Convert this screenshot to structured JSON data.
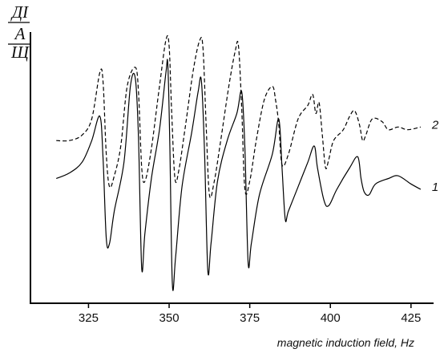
{
  "chart_data": {
    "type": "line",
    "ylabel": [
      "ДI",
      "А",
      "Щ"
    ],
    "xlabel": "magnetic induction field, Hz",
    "x_ticks": [
      325,
      350,
      375,
      400,
      425
    ],
    "xlim": [
      307,
      432
    ],
    "ylim": [
      0,
      1
    ],
    "grid": false,
    "series": [
      {
        "name": "1",
        "style": "solid",
        "color": "#000000",
        "points": [
          [
            315,
            0.46
          ],
          [
            319,
            0.48
          ],
          [
            323,
            0.52
          ],
          [
            326,
            0.6
          ],
          [
            328.5,
            0.69
          ],
          [
            329.5,
            0.54
          ],
          [
            330.5,
            0.24
          ],
          [
            331.5,
            0.22
          ],
          [
            333,
            0.34
          ],
          [
            336,
            0.52
          ],
          [
            338,
            0.8
          ],
          [
            339.5,
            0.83
          ],
          [
            340.5,
            0.61
          ],
          [
            341.5,
            0.13
          ],
          [
            342.5,
            0.26
          ],
          [
            344.5,
            0.46
          ],
          [
            347,
            0.64
          ],
          [
            349,
            0.85
          ],
          [
            349.6,
            0.88
          ],
          [
            350.2,
            0.6
          ],
          [
            351,
            0.07
          ],
          [
            352,
            0.17
          ],
          [
            354,
            0.43
          ],
          [
            357,
            0.63
          ],
          [
            359,
            0.78
          ],
          [
            360,
            0.82
          ],
          [
            361,
            0.55
          ],
          [
            362,
            0.12
          ],
          [
            363,
            0.22
          ],
          [
            365,
            0.45
          ],
          [
            368,
            0.6
          ],
          [
            371,
            0.7
          ],
          [
            372.5,
            0.78
          ],
          [
            373.5,
            0.57
          ],
          [
            374.5,
            0.15
          ],
          [
            375.5,
            0.22
          ],
          [
            378,
            0.4
          ],
          [
            382,
            0.55
          ],
          [
            384,
            0.68
          ],
          [
            385,
            0.5
          ],
          [
            386,
            0.31
          ],
          [
            387,
            0.34
          ],
          [
            390,
            0.43
          ],
          [
            393,
            0.52
          ],
          [
            395,
            0.58
          ],
          [
            396,
            0.5
          ],
          [
            398,
            0.38
          ],
          [
            399.5,
            0.36
          ],
          [
            402,
            0.42
          ],
          [
            406,
            0.5
          ],
          [
            408.5,
            0.54
          ],
          [
            409.5,
            0.46
          ],
          [
            410.5,
            0.41
          ],
          [
            412,
            0.4
          ],
          [
            414,
            0.44
          ],
          [
            418,
            0.46
          ],
          [
            421,
            0.47
          ],
          [
            425,
            0.44
          ],
          [
            428,
            0.42
          ]
        ]
      },
      {
        "name": "2",
        "style": "dashed",
        "color": "#000000",
        "points": [
          [
            315,
            0.6
          ],
          [
            319,
            0.6
          ],
          [
            323,
            0.62
          ],
          [
            326,
            0.68
          ],
          [
            328.5,
            0.85
          ],
          [
            329.5,
            0.82
          ],
          [
            330.5,
            0.55
          ],
          [
            331.5,
            0.43
          ],
          [
            333,
            0.47
          ],
          [
            335,
            0.58
          ],
          [
            337,
            0.8
          ],
          [
            339.5,
            0.87
          ],
          [
            340.5,
            0.78
          ],
          [
            341.5,
            0.5
          ],
          [
            342.5,
            0.45
          ],
          [
            344.5,
            0.57
          ],
          [
            347,
            0.8
          ],
          [
            349,
            0.97
          ],
          [
            350,
            0.95
          ],
          [
            350.8,
            0.7
          ],
          [
            351.8,
            0.46
          ],
          [
            353,
            0.49
          ],
          [
            355,
            0.65
          ],
          [
            357.5,
            0.86
          ],
          [
            359.5,
            0.97
          ],
          [
            360.5,
            0.94
          ],
          [
            361.5,
            0.65
          ],
          [
            362.5,
            0.4
          ],
          [
            364,
            0.45
          ],
          [
            366,
            0.6
          ],
          [
            368.5,
            0.8
          ],
          [
            370.5,
            0.93
          ],
          [
            371.5,
            0.95
          ],
          [
            372.5,
            0.72
          ],
          [
            373.5,
            0.42
          ],
          [
            375,
            0.45
          ],
          [
            377,
            0.6
          ],
          [
            379.5,
            0.75
          ],
          [
            382,
            0.8
          ],
          [
            383,
            0.75
          ],
          [
            384,
            0.66
          ],
          [
            385,
            0.51
          ],
          [
            387,
            0.55
          ],
          [
            390,
            0.68
          ],
          [
            393,
            0.73
          ],
          [
            394.5,
            0.77
          ],
          [
            395.5,
            0.7
          ],
          [
            396.5,
            0.74
          ],
          [
            397.5,
            0.62
          ],
          [
            398.5,
            0.5
          ],
          [
            399.5,
            0.53
          ],
          [
            401,
            0.6
          ],
          [
            404,
            0.64
          ],
          [
            406,
            0.69
          ],
          [
            407.5,
            0.71
          ],
          [
            409,
            0.66
          ],
          [
            410,
            0.6
          ],
          [
            411,
            0.62
          ],
          [
            413,
            0.68
          ],
          [
            416,
            0.67
          ],
          [
            418,
            0.64
          ],
          [
            421,
            0.65
          ],
          [
            424,
            0.64
          ],
          [
            428,
            0.65
          ]
        ]
      }
    ]
  }
}
